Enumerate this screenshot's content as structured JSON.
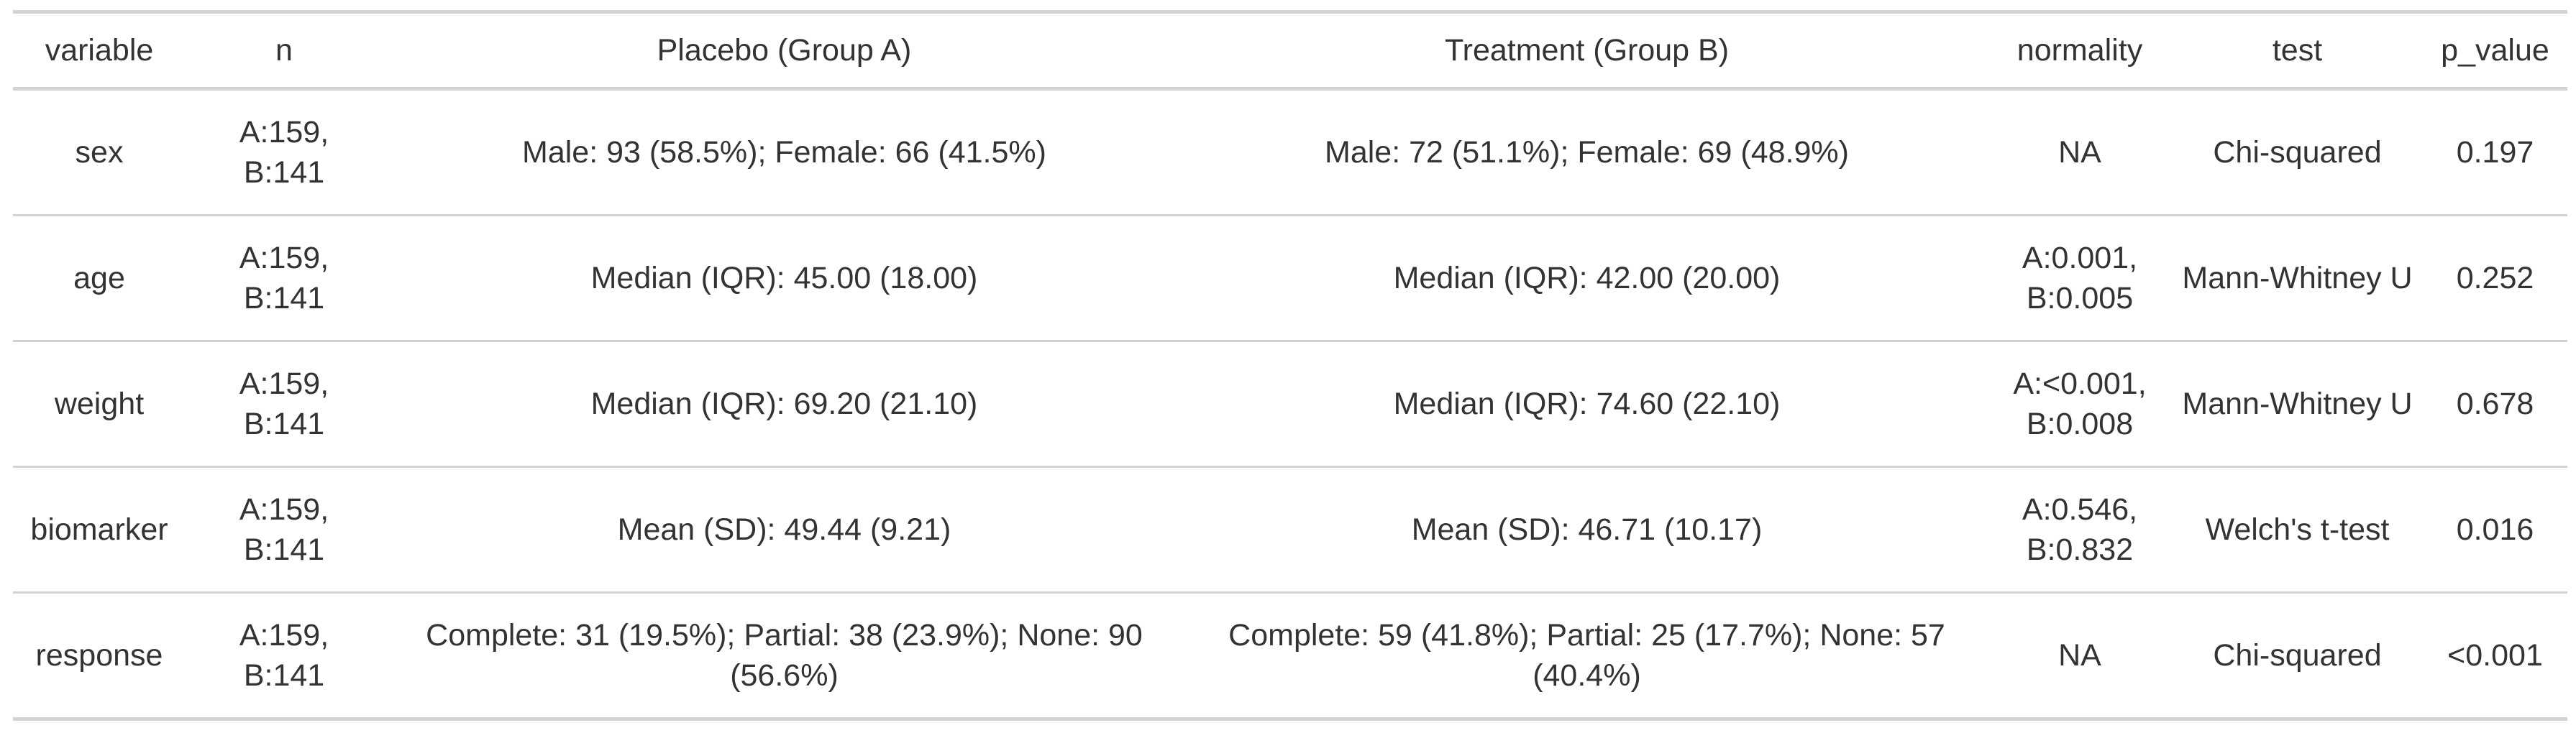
{
  "table": {
    "columns": [
      "variable",
      "n",
      "Placebo (Group A)",
      "Treatment (Group B)",
      "normality",
      "test",
      "p_value"
    ],
    "rows": [
      [
        "sex",
        "A:159, B:141",
        "Male: 93 (58.5%); Female: 66 (41.5%)",
        "Male: 72 (51.1%); Female: 69 (48.9%)",
        "NA",
        "Chi-squared",
        "0.197"
      ],
      [
        "age",
        "A:159, B:141",
        "Median (IQR): 45.00 (18.00)",
        "Median (IQR): 42.00 (20.00)",
        "A:0.001, B:0.005",
        "Mann-Whitney U",
        "0.252"
      ],
      [
        "weight",
        "A:159, B:141",
        "Median (IQR): 69.20 (21.10)",
        "Median (IQR): 74.60 (22.10)",
        "A:<0.001, B:0.008",
        "Mann-Whitney U",
        "0.678"
      ],
      [
        "biomarker",
        "A:159, B:141",
        "Mean (SD): 49.44 (9.21)",
        "Mean (SD): 46.71 (10.17)",
        "A:0.546, B:0.832",
        "Welch's t-test",
        "0.016"
      ],
      [
        "response",
        "A:159, B:141",
        "Complete: 31 (19.5%); Partial: 38 (23.9%); None: 90 (56.6%)",
        "Complete: 59 (41.8%); Partial: 25 (17.7%); None: 57 (40.4%)",
        "NA",
        "Chi-squared",
        "<0.001"
      ]
    ]
  }
}
